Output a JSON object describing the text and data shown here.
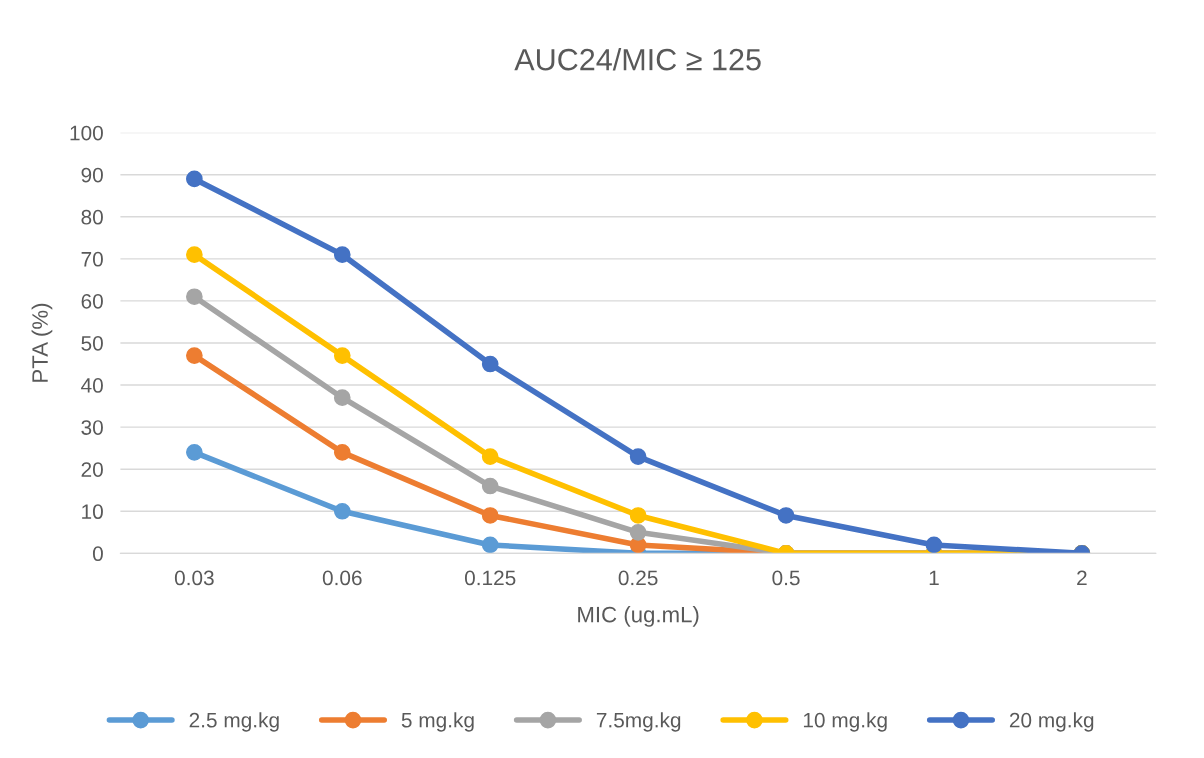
{
  "chart_data": {
    "type": "line",
    "title": "AUC24/MIC ≥ 125",
    "xlabel": "MIC (ug.mL)",
    "ylabel": "PTA (%)",
    "categories": [
      "0.03",
      "0.06",
      "0.125",
      "0.25",
      "0.5",
      "1",
      "2"
    ],
    "series": [
      {
        "name": "2.5 mg.kg",
        "color": "#5b9bd5",
        "values": [
          24,
          10,
          2,
          0,
          0,
          0,
          0
        ]
      },
      {
        "name": "5 mg.kg",
        "color": "#ed7d31",
        "values": [
          47,
          24,
          9,
          2,
          0,
          0,
          0
        ]
      },
      {
        "name": "7.5mg.kg",
        "color": "#a5a5a5",
        "values": [
          61,
          37,
          16,
          5,
          0,
          0,
          0
        ]
      },
      {
        "name": "10 mg.kg",
        "color": "#ffc000",
        "values": [
          71,
          47,
          23,
          9,
          0,
          0,
          0
        ]
      },
      {
        "name": "20 mg.kg",
        "color": "#4472c4",
        "values": [
          89,
          71,
          45,
          23,
          9,
          2,
          0
        ]
      }
    ],
    "ylim": [
      0,
      100
    ],
    "yticks": [
      0,
      10,
      20,
      30,
      40,
      50,
      60,
      70,
      80,
      90,
      100
    ],
    "grid": "y",
    "legend": "bottom",
    "marker": "circle",
    "line_style": "solid"
  }
}
